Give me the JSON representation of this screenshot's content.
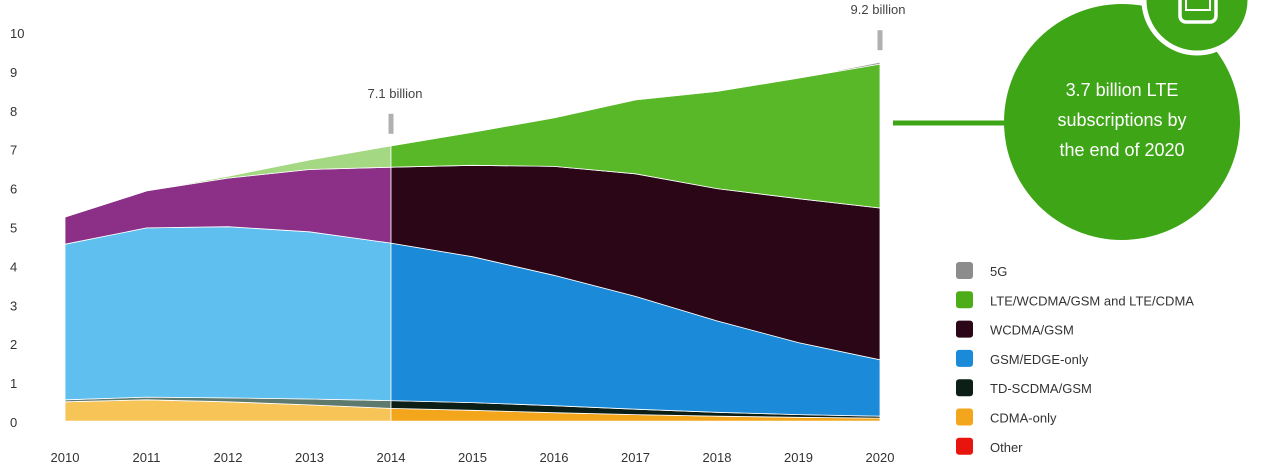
{
  "chart_data": {
    "type": "area",
    "stacked": true,
    "x": [
      2010,
      2011,
      2012,
      2013,
      2014,
      2015,
      2016,
      2017,
      2018,
      2019,
      2020
    ],
    "ylim": [
      0,
      10
    ],
    "yticks": [
      0,
      1,
      2,
      3,
      4,
      5,
      6,
      7,
      8,
      9,
      10
    ],
    "grid": false,
    "legend_position": "right",
    "series": [
      {
        "name": "Other",
        "color": "#e8150e",
        "values": [
          0.02,
          0.02,
          0.02,
          0.02,
          0.02,
          0.02,
          0.02,
          0.02,
          0.02,
          0.02,
          0.02
        ]
      },
      {
        "name": "CDMA-only",
        "color": "#f3a51c",
        "values": [
          0.5,
          0.55,
          0.5,
          0.42,
          0.33,
          0.28,
          0.22,
          0.17,
          0.13,
          0.1,
          0.08
        ]
      },
      {
        "name": "TD-SCDMA/GSM",
        "color": "#0b1f17",
        "values": [
          0.05,
          0.07,
          0.1,
          0.15,
          0.2,
          0.2,
          0.18,
          0.14,
          0.1,
          0.07,
          0.05
        ]
      },
      {
        "name": "GSM/EDGE-only",
        "color": "#1a8ad9",
        "values": [
          4.0,
          4.35,
          4.4,
          4.3,
          4.05,
          3.75,
          3.35,
          2.9,
          2.35,
          1.85,
          1.45
        ]
      },
      {
        "name": "WCDMA/GSM",
        "color": "#8b2f87",
        "values": [
          0.7,
          0.95,
          1.25,
          1.6,
          1.95,
          2.35,
          2.8,
          3.15,
          3.4,
          3.7,
          3.9
        ]
      },
      {
        "name": "LTE/WCDMA/GSM and LTE/CDMA",
        "color": "#58b828",
        "values": [
          0.0,
          0.0,
          0.05,
          0.25,
          0.55,
          0.85,
          1.25,
          1.9,
          2.5,
          3.1,
          3.7
        ]
      },
      {
        "name": "5G",
        "color": "#9a9a9a",
        "values": [
          0,
          0,
          0,
          0,
          0,
          0,
          0,
          0,
          0,
          0,
          0.05
        ]
      }
    ],
    "historic_colors": {
      "CDMA-only": "#f7c458",
      "TD-SCDMA/GSM": "#5e7a6e",
      "GSM/EDGE-only": "#5fc0f0",
      "WCDMA/GSM": "#8b2f87",
      "LTE/WCDMA/GSM and LTE/CDMA": "#a5d883"
    },
    "forecast_colors": {
      "WCDMA/GSM": "#2b0616"
    },
    "forecast_start": 2014,
    "annotations": [
      {
        "x": 2014,
        "text": "7.1 billion"
      },
      {
        "x": 2020,
        "text": "9.2 billion"
      }
    ],
    "callout": {
      "lines": [
        "3.7 billion LTE",
        "subscriptions by",
        "the end of 2020"
      ],
      "color": "#3da516",
      "icon": "mobile-phone-icon"
    },
    "legend": [
      {
        "label": "5G",
        "color": "#8c8c8c"
      },
      {
        "label": "LTE/WCDMA/GSM and LTE/CDMA",
        "color": "#4cad19"
      },
      {
        "label": "WCDMA/GSM",
        "color": "#2b0616"
      },
      {
        "label": "GSM/EDGE-only",
        "color": "#1a8ad9"
      },
      {
        "label": "TD-SCDMA/GSM",
        "color": "#0b1f17"
      },
      {
        "label": "CDMA-only",
        "color": "#f3a51c"
      },
      {
        "label": "Other",
        "color": "#e8150e"
      }
    ]
  }
}
